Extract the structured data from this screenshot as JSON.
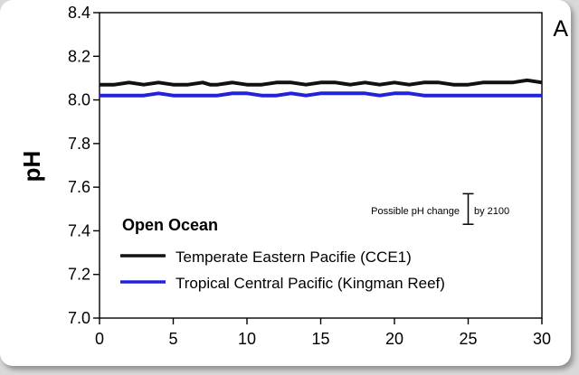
{
  "chart_data": {
    "type": "line",
    "panel_label": "A",
    "ylabel": "pH",
    "xlim": [
      0,
      30
    ],
    "ylim": [
      7.0,
      8.4
    ],
    "x_ticks": [
      "0",
      "5",
      "10",
      "15",
      "20",
      "25",
      "30"
    ],
    "y_ticks": [
      "7.0",
      "7.2",
      "7.4",
      "7.6",
      "7.8",
      "8.0",
      "8.2",
      "8.4"
    ],
    "legend_title": "Open Ocean",
    "legend_position": "bottom-left",
    "grid": false,
    "annotation": {
      "left_text": "Possible pH change",
      "right_text": "by 2100",
      "x": 25,
      "y_low": 7.43,
      "y_high": 7.57
    },
    "series": [
      {
        "name": "Temperate Eastern Pacifie (CCE1)",
        "color": "#111111",
        "x": [
          0,
          1,
          2,
          3,
          4,
          5,
          6,
          7,
          7.5,
          8,
          9,
          10,
          11,
          12,
          13,
          14,
          15,
          16,
          17,
          18,
          19,
          20,
          21,
          22,
          23,
          24,
          25,
          26,
          27,
          28,
          29,
          30
        ],
        "y": [
          8.07,
          8.07,
          8.08,
          8.07,
          8.08,
          8.07,
          8.07,
          8.08,
          8.07,
          8.07,
          8.08,
          8.07,
          8.07,
          8.08,
          8.08,
          8.07,
          8.08,
          8.08,
          8.07,
          8.08,
          8.07,
          8.08,
          8.07,
          8.08,
          8.08,
          8.07,
          8.07,
          8.08,
          8.08,
          8.08,
          8.09,
          8.08
        ]
      },
      {
        "name": "Tropical Central Pacific (Kingman Reef)",
        "color": "#2222dd",
        "x": [
          0,
          1,
          2,
          3,
          4,
          5,
          6,
          7,
          8,
          9,
          10,
          11,
          12,
          13,
          14,
          15,
          16,
          17,
          18,
          19,
          20,
          21,
          22,
          23,
          24,
          25,
          26,
          27,
          28,
          29,
          30
        ],
        "y": [
          8.02,
          8.02,
          8.02,
          8.02,
          8.03,
          8.02,
          8.02,
          8.02,
          8.02,
          8.03,
          8.03,
          8.02,
          8.02,
          8.03,
          8.02,
          8.03,
          8.03,
          8.03,
          8.03,
          8.02,
          8.03,
          8.03,
          8.02,
          8.02,
          8.02,
          8.02,
          8.02,
          8.02,
          8.02,
          8.02,
          8.02
        ]
      }
    ]
  }
}
